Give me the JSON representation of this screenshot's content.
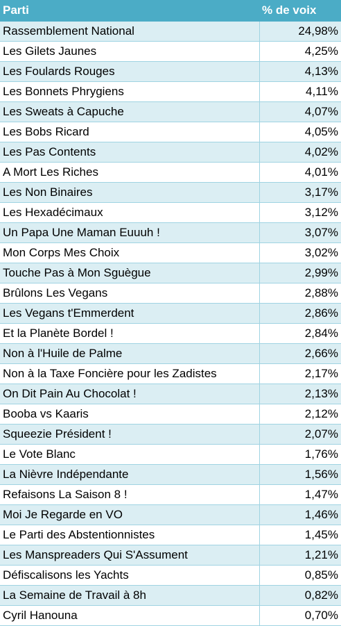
{
  "table": {
    "headers": {
      "party": "Parti",
      "votes": "% de voix"
    },
    "rows": [
      {
        "party": "Rassemblement National",
        "votes": "24,98%"
      },
      {
        "party": "Les Gilets Jaunes",
        "votes": "4,25%"
      },
      {
        "party": "Les Foulards Rouges",
        "votes": "4,13%"
      },
      {
        "party": "Les Bonnets Phrygiens",
        "votes": "4,11%"
      },
      {
        "party": "Les Sweats à Capuche",
        "votes": "4,07%"
      },
      {
        "party": "Les Bobs Ricard",
        "votes": "4,05%"
      },
      {
        "party": "Les Pas Contents",
        "votes": "4,02%"
      },
      {
        "party": "A Mort Les Riches",
        "votes": "4,01%"
      },
      {
        "party": "Les Non Binaires",
        "votes": "3,17%"
      },
      {
        "party": "Les Hexadécimaux",
        "votes": "3,12%"
      },
      {
        "party": "Un Papa Une Maman Euuuh !",
        "votes": "3,07%"
      },
      {
        "party": "Mon Corps Mes Choix",
        "votes": "3,02%"
      },
      {
        "party": "Touche Pas à Mon Sguègue",
        "votes": "2,99%"
      },
      {
        "party": "Brûlons Les Vegans",
        "votes": "2,88%"
      },
      {
        "party": "Les Vegans t'Emmerdent",
        "votes": "2,86%"
      },
      {
        "party": "Et la Planète Bordel !",
        "votes": "2,84%"
      },
      {
        "party": "Non à l'Huile de Palme",
        "votes": "2,66%"
      },
      {
        "party": "Non à la Taxe Foncière pour les Zadistes",
        "votes": "2,17%"
      },
      {
        "party": "On Dit Pain Au Chocolat !",
        "votes": "2,13%"
      },
      {
        "party": "Booba vs Kaaris",
        "votes": "2,12%"
      },
      {
        "party": "Squeezie Président !",
        "votes": "2,07%"
      },
      {
        "party": "Le Vote Blanc",
        "votes": "1,76%"
      },
      {
        "party": "La Nièvre Indépendante",
        "votes": "1,56%"
      },
      {
        "party": "Refaisons La Saison 8 !",
        "votes": "1,47%"
      },
      {
        "party": "Moi Je Regarde en VO",
        "votes": "1,46%"
      },
      {
        "party": "Le Parti des Abstentionnistes",
        "votes": "1,45%"
      },
      {
        "party": "Les Manspreaders Qui S'Assument",
        "votes": "1,21%"
      },
      {
        "party": "Défiscalisons les Yachts",
        "votes": "0,85%"
      },
      {
        "party": "La Semaine de Travail à 8h",
        "votes": "0,82%"
      },
      {
        "party": "Cyril Hanouna",
        "votes": "0,70%"
      }
    ]
  }
}
